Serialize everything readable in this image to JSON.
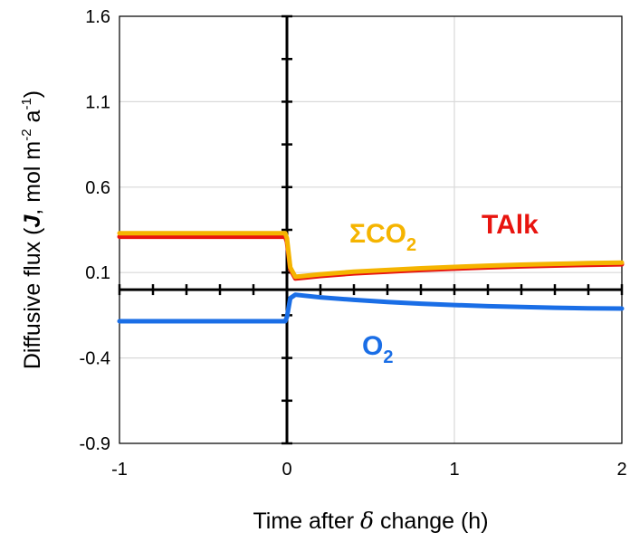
{
  "chart_data": {
    "type": "line",
    "title": "",
    "xlabel_parts": {
      "pre": "Time after ",
      "symbol": "δ",
      "post": " change (h)"
    },
    "ylabel_parts": {
      "pre": "Diffusive flux (",
      "symbol": "J",
      "mid": ", mol m",
      "sup1": "-2",
      "mid2": " a",
      "sup2": "-1",
      "post": ")"
    },
    "xlim": [
      -1,
      2
    ],
    "ylim": [
      -0.9,
      1.6
    ],
    "xticks": [
      "-1",
      "0",
      "1",
      "2"
    ],
    "yticks": [
      "1.6",
      "1.1",
      "0.6",
      "0.1",
      "-0.4",
      "-0.9"
    ],
    "grid": true,
    "series": [
      {
        "name": "TAlk",
        "color": "#e8140f",
        "label_main": "TAlk",
        "label_sub": "",
        "x": [
          -1,
          -0.01,
          0.0,
          0.02,
          0.05,
          0.1,
          0.2,
          0.4,
          0.6,
          0.8,
          1.0,
          1.2,
          1.4,
          1.6,
          1.8,
          2.0
        ],
        "y": [
          0.31,
          0.31,
          0.28,
          0.12,
          0.065,
          0.07,
          0.08,
          0.095,
          0.105,
          0.115,
          0.123,
          0.13,
          0.136,
          0.141,
          0.145,
          0.148
        ]
      },
      {
        "name": "ΣCO2",
        "color": "#f5b400",
        "label_main": "ΣCO",
        "label_sub": "2",
        "x": [
          -1,
          -0.01,
          0.0,
          0.02,
          0.05,
          0.1,
          0.2,
          0.4,
          0.6,
          0.8,
          1.0,
          1.2,
          1.4,
          1.6,
          1.8,
          2.0
        ],
        "y": [
          0.33,
          0.33,
          0.3,
          0.13,
          0.075,
          0.08,
          0.09,
          0.105,
          0.115,
          0.125,
          0.133,
          0.14,
          0.146,
          0.151,
          0.155,
          0.158
        ]
      },
      {
        "name": "O2",
        "color": "#1a6ee6",
        "label_main": "O",
        "label_sub": "2",
        "x": [
          -1,
          -0.01,
          0.0,
          0.02,
          0.05,
          0.1,
          0.2,
          0.4,
          0.6,
          0.8,
          1.0,
          1.2,
          1.4,
          1.6,
          1.8,
          2.0
        ],
        "y": [
          -0.185,
          -0.185,
          -0.16,
          -0.05,
          -0.03,
          -0.035,
          -0.045,
          -0.06,
          -0.072,
          -0.082,
          -0.09,
          -0.097,
          -0.102,
          -0.106,
          -0.109,
          -0.111
        ]
      }
    ]
  }
}
